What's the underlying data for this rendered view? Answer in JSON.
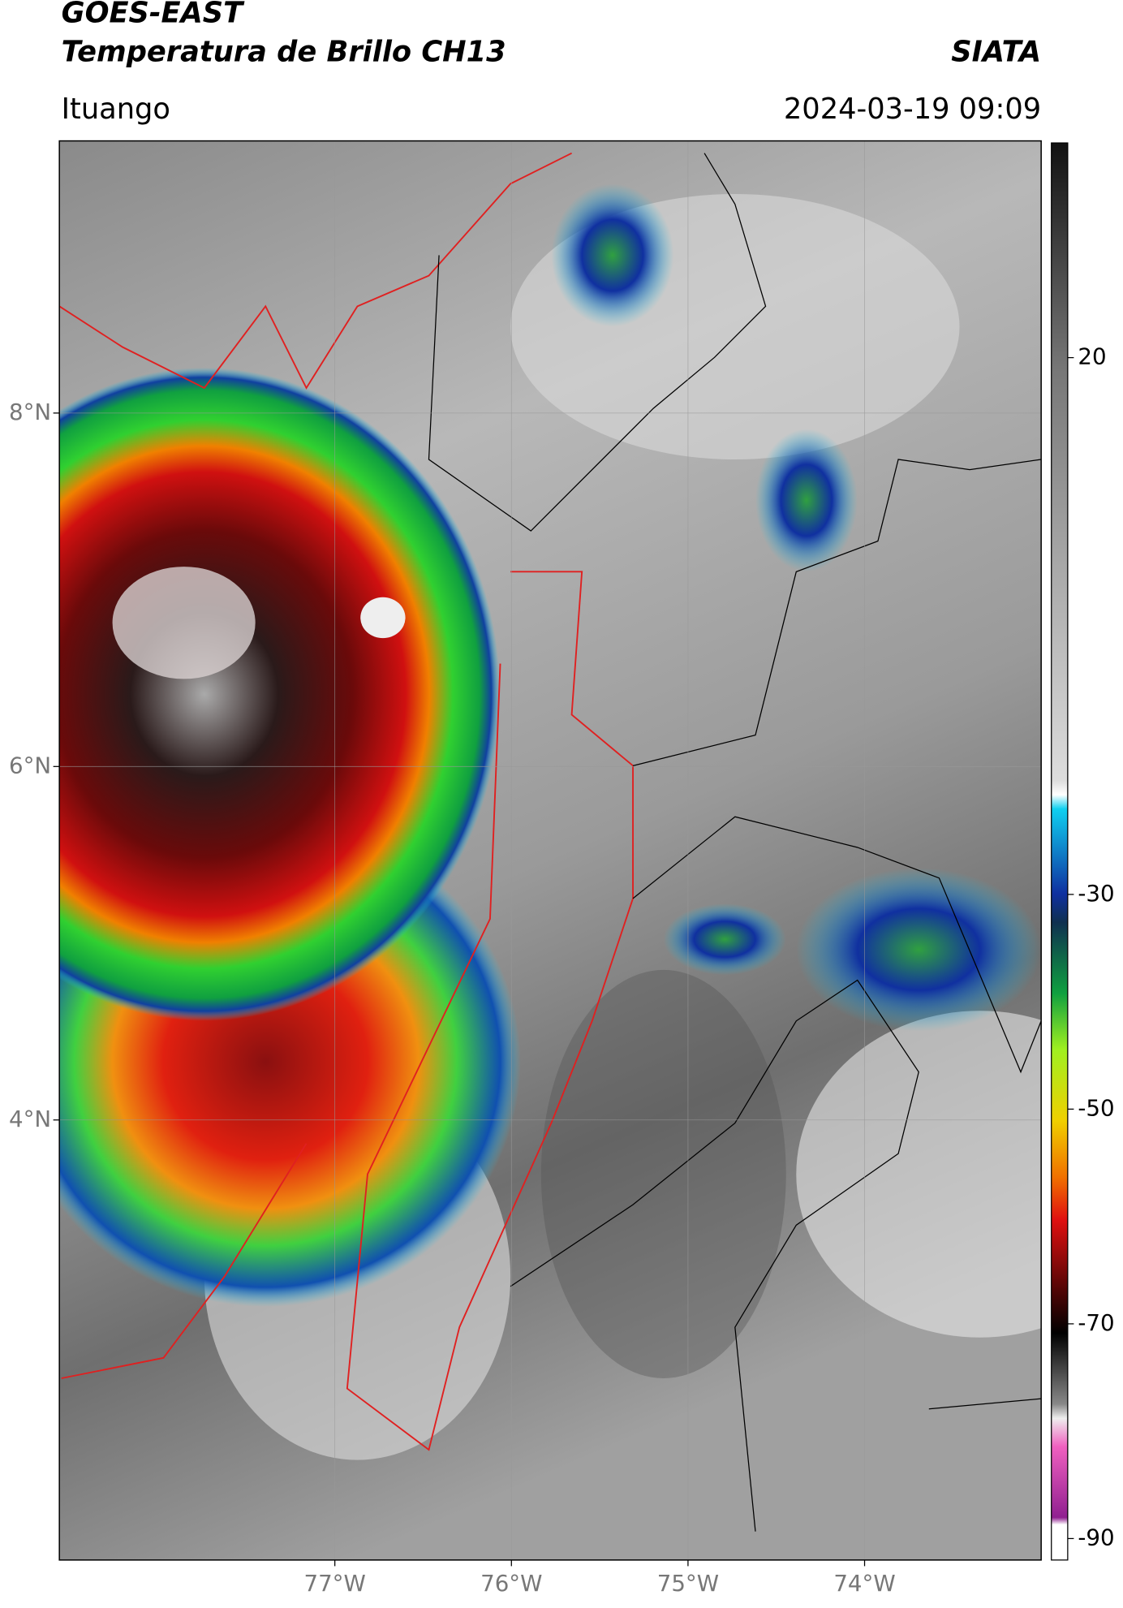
{
  "header": {
    "title": "GOES-EAST",
    "subtitle": "Temperatura de Brillo CH13",
    "source": "SIATA",
    "location": "Ituango",
    "datetime": "2024-03-19 09:09"
  },
  "map": {
    "xlim": [
      -78.56,
      -73.0
    ],
    "ylim": [
      1.51,
      9.54
    ],
    "xticks": [
      {
        "value": -77,
        "label": "77°W"
      },
      {
        "value": -76,
        "label": "76°W"
      },
      {
        "value": -75,
        "label": "75°W"
      },
      {
        "value": -74,
        "label": "74°W"
      }
    ],
    "yticks": [
      {
        "value": 8,
        "label": "8°N"
      },
      {
        "value": 6,
        "label": "6°N"
      },
      {
        "value": 4,
        "label": "4°N"
      }
    ]
  },
  "colorbar": {
    "range": [
      -92,
      40
    ],
    "ticks": [
      20,
      -30,
      -50,
      -70,
      -90
    ]
  }
}
